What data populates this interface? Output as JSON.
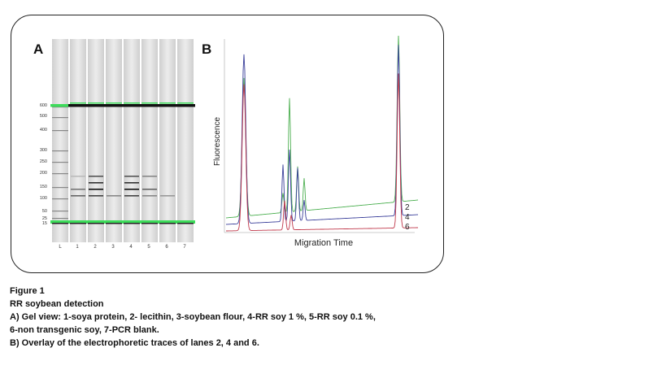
{
  "panel_a_label": "A",
  "panel_b_label": "B",
  "gel": {
    "size_ladder": [
      "600",
      "500",
      "400",
      "300",
      "250",
      "200",
      "150",
      "100",
      "50",
      "25",
      "15"
    ],
    "lane_labels": [
      "L",
      "1",
      "2",
      "3",
      "4",
      "5",
      "6",
      "7"
    ]
  },
  "chart_data": {
    "type": "line",
    "xlabel": "Migration Time",
    "ylabel": "Fluorescence",
    "series": [
      {
        "name": "2",
        "color": "#4caf50"
      },
      {
        "name": "4",
        "color": "#3a3f9a"
      },
      {
        "name": "6",
        "color": "#c0394b"
      }
    ]
  },
  "colors": {
    "marker_green": "#3ddc5a"
  },
  "caption": {
    "figure": "Figure 1",
    "title": "RR soybean detection",
    "line_a1": "A) Gel view: 1-soya protein, 2- lecithin, 3-soybean flour, 4-RR soy 1 %, 5-RR soy 0.1 %,",
    "line_a2": "6-non transgenic soy, 7-PCR blank.",
    "line_b": "B) Overlay of the electrophoretic traces of lanes 2, 4 and 6."
  }
}
